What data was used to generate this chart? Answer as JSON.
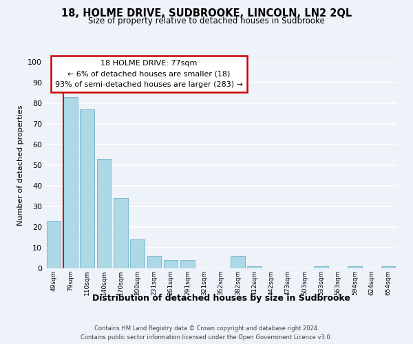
{
  "title": "18, HOLME DRIVE, SUDBROOKE, LINCOLN, LN2 2QL",
  "subtitle": "Size of property relative to detached houses in Sudbrooke",
  "xlabel": "Distribution of detached houses by size in Sudbrooke",
  "ylabel": "Number of detached properties",
  "bar_labels": [
    "49sqm",
    "79sqm",
    "110sqm",
    "140sqm",
    "170sqm",
    "200sqm",
    "231sqm",
    "261sqm",
    "291sqm",
    "321sqm",
    "352sqm",
    "382sqm",
    "412sqm",
    "442sqm",
    "473sqm",
    "503sqm",
    "533sqm",
    "563sqm",
    "594sqm",
    "624sqm",
    "654sqm"
  ],
  "bar_values": [
    23,
    83,
    77,
    53,
    34,
    14,
    6,
    4,
    4,
    0,
    0,
    6,
    1,
    0,
    0,
    0,
    1,
    0,
    1,
    0,
    1
  ],
  "bar_color": "#add8e6",
  "bar_edge_color": "#6cb4cc",
  "marker_color": "#cc0000",
  "annotation_lines": [
    "18 HOLME DRIVE: 77sqm",
    "← 6% of detached houses are smaller (18)",
    "93% of semi-detached houses are larger (283) →"
  ],
  "ylim": [
    0,
    100
  ],
  "yticks": [
    0,
    10,
    20,
    30,
    40,
    50,
    60,
    70,
    80,
    90,
    100
  ],
  "footer_line1": "Contains HM Land Registry data © Crown copyright and database right 2024.",
  "footer_line2": "Contains public sector information licensed under the Open Government Licence v3.0.",
  "bg_color": "#eef2f9"
}
